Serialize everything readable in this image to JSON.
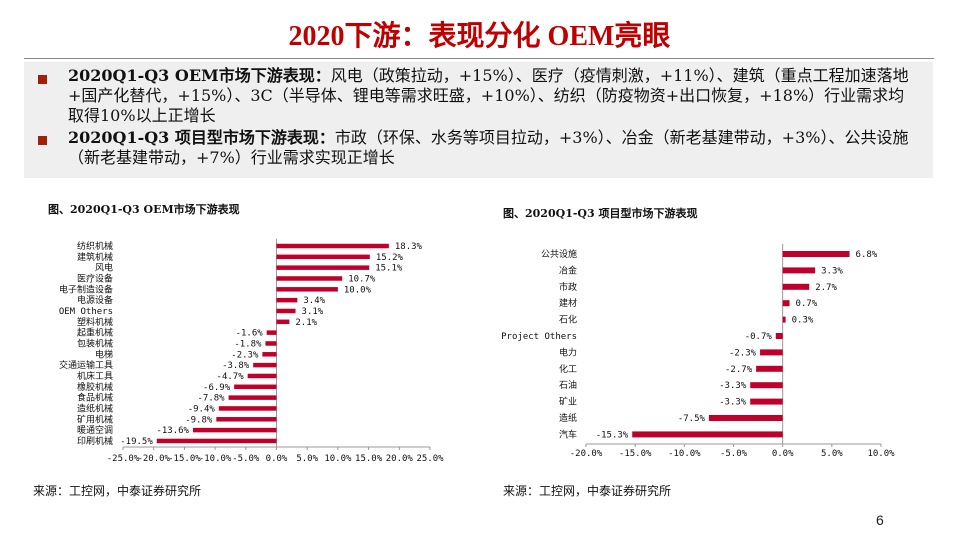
{
  "title": "2020下游：表现分化 OEM亮眼",
  "bullets": [
    {
      "bold": "2020Q1-Q3 OEM市场下游表现：",
      "text": "风电（政策拉动，+15%）、医疗（疫情刺激，+11%）、建筑（重点工程加速落地+国产化替代，+15%）、3C（半导体、锂电等需求旺盛，+10%）、纺织（防疫物资+出口恢复，+18%）行业需求均取得10%以上正增长"
    },
    {
      "bold": "2020Q1-Q3 项目型市场下游表现：",
      "text": "市政（环保、水务等项目拉动，+3%）、冶金（新老基建带动，+3%）、公共设施（新老基建带动，+7%）行业需求实现正增长"
    }
  ],
  "colors": {
    "bar": "#c0002a",
    "title": "#c00000",
    "bullet": "#a0200a"
  },
  "chart_data": [
    {
      "type": "bar",
      "orientation": "horizontal",
      "title": "图、2020Q1-Q3 OEM市场下游表现",
      "categories": [
        "纺织机械",
        "建筑机械",
        "风电",
        "医疗设备",
        "电子制造设备",
        "电源设备",
        "OEM Others",
        "塑料机械",
        "起重机械",
        "包装机械",
        "电梯",
        "交通运输工具",
        "机床工具",
        "橡胶机械",
        "食品机械",
        "造纸机械",
        "矿用机械",
        "暖通空调",
        "印刷机械"
      ],
      "values": [
        18.3,
        15.2,
        15.1,
        10.7,
        10.0,
        3.4,
        3.1,
        2.1,
        -1.6,
        -1.8,
        -2.3,
        -3.8,
        -4.7,
        -6.9,
        -7.8,
        -9.4,
        -9.8,
        -13.6,
        -19.5
      ],
      "xlim": [
        -25,
        25
      ],
      "ticks": [
        "-25.0%",
        "-20.0%",
        "-15.0%",
        "-10.0%",
        "-5.0%",
        "0.0%",
        "5.0%",
        "10.0%",
        "15.0%",
        "20.0%",
        "25.0%"
      ],
      "source": "来源：工控网，中泰证券研究所"
    },
    {
      "type": "bar",
      "orientation": "horizontal",
      "title": "图、2020Q1-Q3 项目型市场下游表现",
      "categories": [
        "公共设施",
        "冶金",
        "市政",
        "建材",
        "石化",
        "Project Others",
        "电力",
        "化工",
        "石油",
        "矿业",
        "造纸",
        "汽车"
      ],
      "values": [
        6.8,
        3.3,
        2.7,
        0.7,
        0.3,
        -0.7,
        -2.3,
        -2.7,
        -3.3,
        -3.3,
        -7.5,
        -15.3
      ],
      "xlim": [
        -20,
        10
      ],
      "ticks": [
        "-20.0%",
        "-15.0%",
        "-10.0%",
        "-5.0%",
        "0.0%",
        "5.0%",
        "10.0%"
      ],
      "source": "来源：工控网，中泰证券研究所"
    }
  ],
  "page_number": "6"
}
